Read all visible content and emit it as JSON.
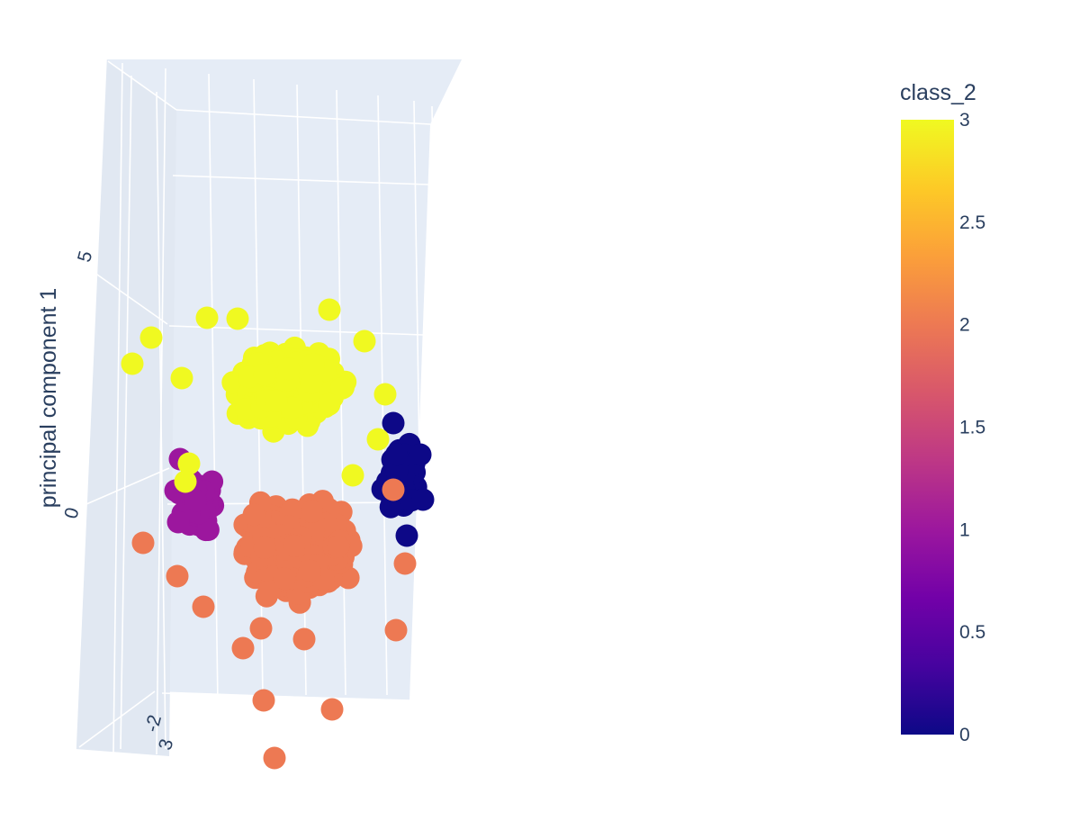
{
  "chart_data": {
    "type": "scatter3d",
    "title": "",
    "axes": {
      "vertical": {
        "label": "principal component 1",
        "ticks": [
          "0",
          "5"
        ]
      },
      "depth": {
        "label": "",
        "ticks": [
          "-2",
          "3"
        ]
      }
    },
    "grid": true,
    "colorbar": {
      "title": "class_2",
      "min": 0,
      "max": 3,
      "ticks": [
        {
          "value": 3,
          "label": "3"
        },
        {
          "value": 2.5,
          "label": "2.5"
        },
        {
          "value": 2,
          "label": "2"
        },
        {
          "value": 1.5,
          "label": "1.5"
        },
        {
          "value": 1,
          "label": "1"
        },
        {
          "value": 0.5,
          "label": "0.5"
        },
        {
          "value": 0,
          "label": "0"
        }
      ],
      "placement": "right",
      "colorscale": [
        "#0d0887",
        "#46039f",
        "#7201a8",
        "#9c179e",
        "#bd3786",
        "#d8576b",
        "#ed7953",
        "#fb9f3a",
        "#fdca26",
        "#f0f921"
      ]
    },
    "classes": [
      {
        "value": 0,
        "color": "#0d0887"
      },
      {
        "value": 1,
        "color": "#9c179e"
      },
      {
        "value": 2,
        "color": "#ed7953"
      },
      {
        "value": 3,
        "color": "#f0f921"
      }
    ]
  }
}
